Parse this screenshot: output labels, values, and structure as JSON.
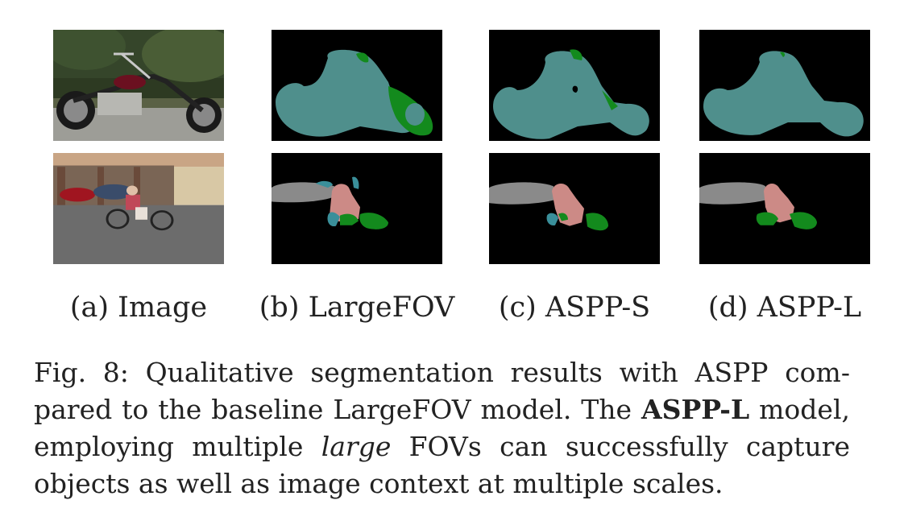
{
  "figure": {
    "columns": [
      {
        "label": "(a) Image"
      },
      {
        "label": "(b) LargeFOV"
      },
      {
        "label": "(c) ASPP-S"
      },
      {
        "label": "(d) ASPP-L"
      }
    ],
    "rows": [
      {
        "subject": "motorbike"
      },
      {
        "subject": "person riding bicycle in front of garages"
      }
    ],
    "segmentation_colors": {
      "background": "#000000",
      "motorbike": "#4f8f8c",
      "bicycle": "#138a1d",
      "person": "#cc8a86",
      "car": "#8a8a8a",
      "misc_teal": "#3a8f9a"
    }
  },
  "caption": {
    "line1_prefix": "Fig. 8: Qualitative segmentation results with ASPP com-",
    "line2_before_bold": "pared to the baseline LargeFOV model. The ",
    "line2_bold": "ASPP-L",
    "line2_after_bold": " model,",
    "line3_before_italic": "employing multiple ",
    "line3_italic": "large",
    "line3_after_italic": " FOVs can successfully capture",
    "line4": "objects as well as image context at multiple scales."
  }
}
